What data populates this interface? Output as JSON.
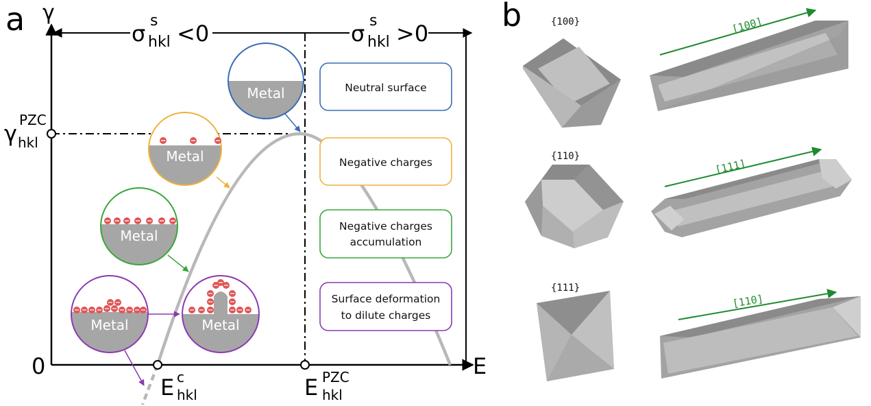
{
  "panels": {
    "a": {
      "panel_letter": "a",
      "y_axis": {
        "symbol": "γ",
        "zero": "0"
      },
      "x_axis": {
        "symbol": "E"
      },
      "sigma_left": {
        "base": "σ",
        "sup": "s",
        "sub": "hkl",
        "rel": "<0"
      },
      "sigma_right": {
        "base": "σ",
        "sup": "s",
        "sub": "hkl",
        "rel": ">0"
      },
      "gamma_pzc": {
        "base": "γ",
        "sup": "PZC",
        "sub": "hkl"
      },
      "e_c": {
        "base": "E",
        "sup": "c",
        "sub": "hkl"
      },
      "e_pzc": {
        "base": "E",
        "sup": "PZC",
        "sub": "hkl"
      },
      "circle_label": "Metal",
      "charge_symbol": "⊖",
      "boxes": [
        {
          "text_lines": [
            "Neutral surface"
          ],
          "color": "#3a6cb5"
        },
        {
          "text_lines": [
            "Negative charges"
          ],
          "color": "#f0b13a"
        },
        {
          "text_lines": [
            "Negative charges",
            "accumulation"
          ],
          "color": "#3aa53a"
        },
        {
          "text_lines": [
            "Surface deformation",
            "to dilute charges"
          ],
          "color": "#8a3ab0"
        }
      ],
      "colors": {
        "curve": "#b8b8b8",
        "metal": "#a6a6a6",
        "charge": "#e05555"
      }
    },
    "b": {
      "panel_letter": "b",
      "facets": [
        "{100}",
        "{110}",
        "{111}"
      ],
      "directions": [
        "[100]",
        "[111]",
        "[110]"
      ],
      "arrow_color": "#1e8a2e"
    }
  }
}
